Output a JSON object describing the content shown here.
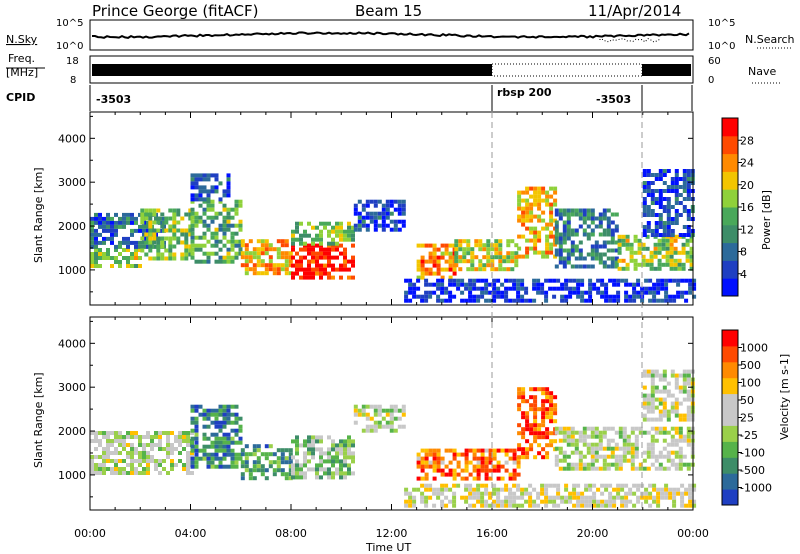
{
  "header": {
    "station": "Prince George (fitACF)",
    "beam": "Beam 15",
    "date": "11/Apr/2014"
  },
  "left_labels": {
    "noise": "N.Sky",
    "freq_line1": "Freq.",
    "freq_line2": "[MHz]",
    "cpid": "CPID"
  },
  "right_labels": {
    "noise": "N.Search",
    "nave": "Nave"
  },
  "noise_panel": {
    "left_ticks": [
      "10^5",
      "10^0"
    ],
    "right_ticks": [
      "10^5",
      "10^0"
    ]
  },
  "freq_panel": {
    "left_ticks": [
      "18",
      "8"
    ],
    "right_ticks": [
      "60",
      "0"
    ]
  },
  "cpid_panel": {
    "segments": [
      {
        "label": "-3503",
        "start_hour": 0,
        "end_hour": 16
      },
      {
        "label": "rbsp 200",
        "start_hour": 16,
        "end_hour": 22
      },
      {
        "label": "-3503",
        "start_hour": 22,
        "end_hour": 24
      }
    ]
  },
  "chart_data": [
    {
      "type": "heatmap",
      "name": "power",
      "ylabel": "Slant Range [km]",
      "xlim": [
        0,
        24
      ],
      "ylim": [
        200,
        4600
      ],
      "yticks": [
        1000,
        2000,
        3000,
        4000
      ],
      "colorbar": {
        "label": "Power [dB]",
        "range": [
          0,
          32
        ],
        "ticks": [
          "4",
          "8",
          "12",
          "16",
          "20",
          "24",
          "28"
        ],
        "colors": [
          "#0010ff",
          "#1f3fc2",
          "#2c6a9a",
          "#3d8d68",
          "#49a85a",
          "#8fd13a",
          "#f3c500",
          "#ff8a00",
          "#ff4a00",
          "#ff0000"
        ]
      },
      "regions": [
        {
          "x": [
            0.0,
            2.0
          ],
          "y": [
            1100,
            1500
          ],
          "level": 0.55
        },
        {
          "x": [
            0.0,
            3.0
          ],
          "y": [
            1500,
            2300
          ],
          "level": 0.25
        },
        {
          "x": [
            2.0,
            4.0
          ],
          "y": [
            1300,
            2400
          ],
          "level": 0.5
        },
        {
          "x": [
            4.0,
            6.0
          ],
          "y": [
            1200,
            2600
          ],
          "level": 0.45
        },
        {
          "x": [
            4.0,
            5.5
          ],
          "y": [
            2600,
            3200
          ],
          "level": 0.2
        },
        {
          "x": [
            6.0,
            8.0
          ],
          "y": [
            900,
            1700
          ],
          "level": 0.7
        },
        {
          "x": [
            8.0,
            10.5
          ],
          "y": [
            800,
            1600
          ],
          "level": 0.95
        },
        {
          "x": [
            8.0,
            10.5
          ],
          "y": [
            1600,
            2100
          ],
          "level": 0.5
        },
        {
          "x": [
            10.5,
            12.5
          ],
          "y": [
            1900,
            2600
          ],
          "level": 0.15
        },
        {
          "x": [
            13.0,
            14.5
          ],
          "y": [
            800,
            1600
          ],
          "level": 0.75
        },
        {
          "x": [
            14.5,
            17.0
          ],
          "y": [
            1000,
            1700
          ],
          "level": 0.6
        },
        {
          "x": [
            17.0,
            18.5
          ],
          "y": [
            1300,
            2900
          ],
          "level": 0.7
        },
        {
          "x": [
            18.5,
            21.0
          ],
          "y": [
            1100,
            2400
          ],
          "level": 0.3
        },
        {
          "x": [
            21.0,
            24.0
          ],
          "y": [
            1000,
            1800
          ],
          "level": 0.55
        },
        {
          "x": [
            22.0,
            24.0
          ],
          "y": [
            1800,
            3300
          ],
          "level": 0.15
        },
        {
          "x": [
            12.5,
            24.0
          ],
          "y": [
            300,
            800
          ],
          "level": 0.1
        }
      ]
    },
    {
      "type": "heatmap",
      "name": "velocity",
      "ylabel": "Slant Range [km]",
      "xlabel": "Time UT",
      "xlim": [
        0,
        24
      ],
      "ylim": [
        200,
        4600
      ],
      "yticks": [
        1000,
        2000,
        3000,
        4000
      ],
      "xticks": [
        "00:00",
        "04:00",
        "08:00",
        "12:00",
        "16:00",
        "20:00",
        "00:00"
      ],
      "colorbar": {
        "label": "Velocity [m s-1]",
        "ticks": [
          "1000",
          "500",
          "100",
          "50",
          "25",
          "-25",
          "-100",
          "-500",
          "-1000"
        ],
        "colors": [
          "#1f3fc2",
          "#2c6a9a",
          "#3d8d68",
          "#56b34a",
          "#9ad04a",
          "#c8c8c8",
          "#c8c8c8",
          "#ffc000",
          "#ff8a00",
          "#ff4a00",
          "#ff0000"
        ]
      },
      "regions": [
        {
          "x": [
            0.0,
            4.0
          ],
          "y": [
            1000,
            2000
          ],
          "level": 0.5
        },
        {
          "x": [
            4.0,
            6.0
          ],
          "y": [
            1200,
            2600
          ],
          "level": 0.2
        },
        {
          "x": [
            6.0,
            8.0
          ],
          "y": [
            900,
            1700
          ],
          "level": 0.25
        },
        {
          "x": [
            8.0,
            10.5
          ],
          "y": [
            900,
            1900
          ],
          "level": 0.4
        },
        {
          "x": [
            10.5,
            12.5
          ],
          "y": [
            2000,
            2600
          ],
          "level": 0.5
        },
        {
          "x": [
            13.0,
            17.0
          ],
          "y": [
            900,
            1600
          ],
          "level": 0.8
        },
        {
          "x": [
            17.0,
            18.5
          ],
          "y": [
            1400,
            3000
          ],
          "level": 0.85
        },
        {
          "x": [
            18.5,
            24.0
          ],
          "y": [
            1100,
            2100
          ],
          "level": 0.5
        },
        {
          "x": [
            22.0,
            24.0
          ],
          "y": [
            2300,
            3400
          ],
          "level": 0.5
        },
        {
          "x": [
            12.5,
            24.0
          ],
          "y": [
            300,
            800
          ],
          "level": 0.55
        }
      ]
    }
  ]
}
